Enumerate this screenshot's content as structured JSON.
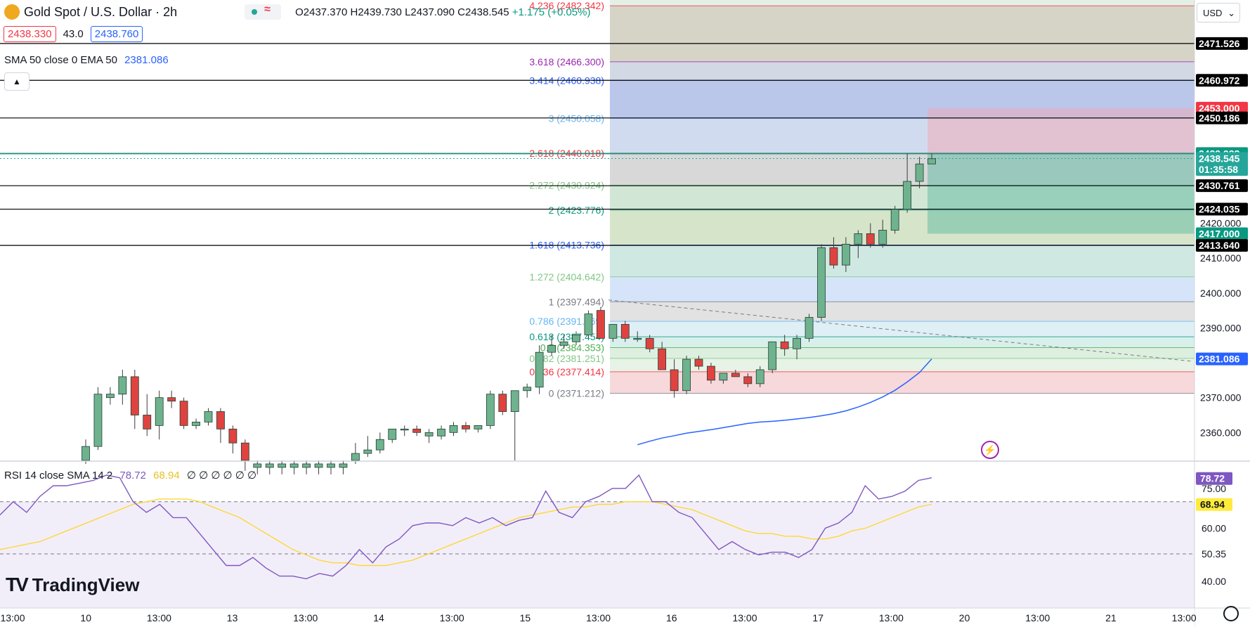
{
  "header": {
    "symbol": "Gold Spot / U.S. Dollar · 2h",
    "open": "O2437.370",
    "high": "H2439.730",
    "low": "L2437.090",
    "close": "C2438.545",
    "change": "+1.175 (+0.05%)",
    "bid": "2438.330",
    "spread": "43.0",
    "ask": "2438.760",
    "currency": "USD"
  },
  "indicators": {
    "sma": "SMA 50 close 0 EMA 50",
    "sma_value": "2381.086",
    "rsi": "RSI 14 close SMA 14 2",
    "rsi_value": "78.72",
    "rsi_sma_value": "68.94",
    "rsi_extra": "∅ ∅ ∅ ∅ ∅ ∅"
  },
  "brand": "TradingView",
  "colors": {
    "up": "#26a69a",
    "down": "#ef5350",
    "candle_up_fill": "#6fb38e",
    "candle_down_fill": "#e0433f",
    "sma": "#2962ff",
    "rsi": "#7e57c2",
    "rsi_sma": "#fdd835"
  },
  "chart_data": {
    "type": "candlestick",
    "price_ylim": [
      2352,
      2484
    ],
    "price_ticks": [
      "2360.000",
      "2370.000",
      "2390.000",
      "2400.000",
      "2410.000",
      "2420.000"
    ],
    "x_ticks": [
      "13:00",
      "10",
      "13:00",
      "13",
      "13:00",
      "14",
      "13:00",
      "15",
      "13:00",
      "16",
      "13:00",
      "17",
      "13:00",
      "20",
      "13:00",
      "21",
      "13:00"
    ],
    "candles": [
      {
        "o": 2352,
        "h": 2358,
        "l": 2351,
        "c": 2356
      },
      {
        "o": 2356,
        "h": 2373,
        "l": 2355,
        "c": 2371
      },
      {
        "o": 2370,
        "h": 2373,
        "l": 2368,
        "c": 2371
      },
      {
        "o": 2371,
        "h": 2378,
        "l": 2368,
        "c": 2376
      },
      {
        "o": 2376,
        "h": 2378,
        "l": 2361,
        "c": 2365
      },
      {
        "o": 2365,
        "h": 2371,
        "l": 2359,
        "c": 2361
      },
      {
        "o": 2362,
        "h": 2372,
        "l": 2358,
        "c": 2370
      },
      {
        "o": 2370,
        "h": 2372,
        "l": 2367,
        "c": 2369
      },
      {
        "o": 2369,
        "h": 2370,
        "l": 2361,
        "c": 2362
      },
      {
        "o": 2362,
        "h": 2364,
        "l": 2361,
        "c": 2363
      },
      {
        "o": 2363,
        "h": 2367,
        "l": 2362,
        "c": 2366
      },
      {
        "o": 2366,
        "h": 2367,
        "l": 2357,
        "c": 2361
      },
      {
        "o": 2361,
        "h": 2362,
        "l": 2354,
        "c": 2357
      },
      {
        "o": 2357,
        "h": 2358,
        "l": 2349,
        "c": 2352
      },
      {
        "o": 2350,
        "h": 2352,
        "l": 2348,
        "c": 2351
      },
      {
        "o": 2350,
        "h": 2352,
        "l": 2348,
        "c": 2351
      },
      {
        "o": 2350,
        "h": 2352,
        "l": 2348,
        "c": 2351
      },
      {
        "o": 2350,
        "h": 2352,
        "l": 2348,
        "c": 2351
      },
      {
        "o": 2350,
        "h": 2352,
        "l": 2348,
        "c": 2351
      },
      {
        "o": 2350,
        "h": 2352,
        "l": 2348,
        "c": 2351
      },
      {
        "o": 2350,
        "h": 2352,
        "l": 2348,
        "c": 2351
      },
      {
        "o": 2350,
        "h": 2352,
        "l": 2348,
        "c": 2351
      },
      {
        "o": 2352,
        "h": 2357,
        "l": 2351,
        "c": 2354
      },
      {
        "o": 2354,
        "h": 2359,
        "l": 2353,
        "c": 2355
      },
      {
        "o": 2355,
        "h": 2360,
        "l": 2354,
        "c": 2358
      },
      {
        "o": 2358,
        "h": 2361,
        "l": 2357,
        "c": 2361
      },
      {
        "o": 2361,
        "h": 2362,
        "l": 2359,
        "c": 2361
      },
      {
        "o": 2361,
        "h": 2362,
        "l": 2359,
        "c": 2360
      },
      {
        "o": 2359,
        "h": 2361,
        "l": 2357,
        "c": 2360
      },
      {
        "o": 2359,
        "h": 2362,
        "l": 2358,
        "c": 2361
      },
      {
        "o": 2360,
        "h": 2363,
        "l": 2359,
        "c": 2362
      },
      {
        "o": 2362,
        "h": 2363,
        "l": 2360,
        "c": 2361
      },
      {
        "o": 2361,
        "h": 2362,
        "l": 2360,
        "c": 2362
      },
      {
        "o": 2362,
        "h": 2372,
        "l": 2361,
        "c": 2371
      },
      {
        "o": 2371,
        "h": 2372,
        "l": 2365,
        "c": 2366
      },
      {
        "o": 2366,
        "h": 2372,
        "l": 2352,
        "c": 2372
      },
      {
        "o": 2372,
        "h": 2374,
        "l": 2370,
        "c": 2373
      },
      {
        "o": 2373,
        "h": 2385,
        "l": 2371,
        "c": 2383
      },
      {
        "o": 2383,
        "h": 2388,
        "l": 2382,
        "c": 2385
      },
      {
        "o": 2385,
        "h": 2388,
        "l": 2384,
        "c": 2386
      },
      {
        "o": 2386,
        "h": 2389,
        "l": 2385,
        "c": 2388
      },
      {
        "o": 2388,
        "h": 2395,
        "l": 2387,
        "c": 2394
      },
      {
        "o": 2395,
        "h": 2396,
        "l": 2387,
        "c": 2387
      },
      {
        "o": 2387,
        "h": 2391,
        "l": 2386,
        "c": 2391
      },
      {
        "o": 2391,
        "h": 2392,
        "l": 2386,
        "c": 2387
      },
      {
        "o": 2387,
        "h": 2389,
        "l": 2386,
        "c": 2387
      },
      {
        "o": 2387,
        "h": 2388,
        "l": 2383,
        "c": 2384
      },
      {
        "o": 2384,
        "h": 2386,
        "l": 2378,
        "c": 2378
      },
      {
        "o": 2378,
        "h": 2381,
        "l": 2370,
        "c": 2372
      },
      {
        "o": 2372,
        "h": 2382,
        "l": 2371,
        "c": 2381
      },
      {
        "o": 2381,
        "h": 2382,
        "l": 2378,
        "c": 2379
      },
      {
        "o": 2379,
        "h": 2380,
        "l": 2374,
        "c": 2375
      },
      {
        "o": 2375,
        "h": 2377,
        "l": 2374,
        "c": 2377
      },
      {
        "o": 2377,
        "h": 2378,
        "l": 2376,
        "c": 2376
      },
      {
        "o": 2376,
        "h": 2377,
        "l": 2373,
        "c": 2374
      },
      {
        "o": 2374,
        "h": 2379,
        "l": 2373,
        "c": 2378
      },
      {
        "o": 2378,
        "h": 2386,
        "l": 2377,
        "c": 2386
      },
      {
        "o": 2386,
        "h": 2388,
        "l": 2382,
        "c": 2384
      },
      {
        "o": 2384,
        "h": 2388,
        "l": 2381,
        "c": 2387
      },
      {
        "o": 2387,
        "h": 2394,
        "l": 2386,
        "c": 2393
      },
      {
        "o": 2393,
        "h": 2414,
        "l": 2392,
        "c": 2413
      },
      {
        "o": 2413,
        "h": 2416,
        "l": 2407,
        "c": 2408
      },
      {
        "o": 2408,
        "h": 2416,
        "l": 2406,
        "c": 2414
      },
      {
        "o": 2414,
        "h": 2418,
        "l": 2410,
        "c": 2417
      },
      {
        "o": 2417,
        "h": 2420,
        "l": 2413,
        "c": 2414
      },
      {
        "o": 2414,
        "h": 2421,
        "l": 2413,
        "c": 2418
      },
      {
        "o": 2418,
        "h": 2425,
        "l": 2417,
        "c": 2424
      },
      {
        "o": 2424,
        "h": 2440,
        "l": 2423,
        "c": 2432
      },
      {
        "o": 2432,
        "h": 2439,
        "l": 2430,
        "c": 2437
      },
      {
        "o": 2437,
        "h": 2440,
        "l": 2437,
        "c": 2438.5
      }
    ],
    "sma50": [
      2356.5,
      2357.5,
      2358.4,
      2359.1,
      2359.8,
      2360.3,
      2360.8,
      2361.4,
      2362.0,
      2362.6,
      2363.0,
      2363.2,
      2363.5,
      2363.9,
      2364.3,
      2364.8,
      2365.4,
      2366.2,
      2367.3,
      2368.6,
      2370.2,
      2372.1,
      2374.5,
      2377.2,
      2381.1
    ],
    "sma50_start_candle": 45,
    "fib_levels": [
      {
        "ratio": "0",
        "price": 2371.212,
        "label": "0 (2371.212)",
        "color": "#787b86",
        "fill": "#f7d6d9"
      },
      {
        "ratio": "0.236",
        "price": 2377.414,
        "label": "0.236 (2377.414)",
        "color": "#f23645",
        "fill": "#e6f2e6"
      },
      {
        "ratio": "0.382",
        "price": 2381.251,
        "label": "0.382 (2381.251)",
        "color": "#81c784",
        "fill": "#dbeedd"
      },
      {
        "ratio": "0.5",
        "price": 2384.353,
        "label": "0.5 (2384.353)",
        "color": "#4caf50",
        "fill": "#d7eeea"
      },
      {
        "ratio": "0.618",
        "price": 2387.454,
        "label": "0.618 (2387.454)",
        "color": "#089981",
        "fill": "#ddeef6"
      },
      {
        "ratio": "0.786",
        "price": 2391.869,
        "label": "0.786 (2391.869)",
        "color": "#64b5f6",
        "fill": "#e0e0e0"
      },
      {
        "ratio": "1",
        "price": 2397.494,
        "label": "1 (2397.494)",
        "color": "#787b86",
        "fill": "#d4e3fa"
      },
      {
        "ratio": "1.272",
        "price": 2404.642,
        "label": "1.272 (2404.642)",
        "color": "#81c784",
        "fill": "#cde7e0"
      },
      {
        "ratio": "1.618",
        "price": 2413.736,
        "label": "1.618 (2413.736)",
        "color": "#2962ff",
        "fill": "#d4e3c7"
      },
      {
        "ratio": "2",
        "price": 2423.776,
        "label": "2 (2423.776)",
        "color": "#089981",
        "fill": "#cfe5d3"
      },
      {
        "ratio": "2.272",
        "price": 2430.924,
        "label": "2.272 (2430.924)",
        "color": "#81c784",
        "fill": "#d6d6d6"
      },
      {
        "ratio": "2.618",
        "price": 2440.018,
        "label": "2.618 (2440.018)",
        "color": "#f23645",
        "fill": "#cfd9ee"
      },
      {
        "ratio": "3",
        "price": 2450.058,
        "label": "3 (2450.058)",
        "color": "#64b5f6",
        "fill": "#b7c3ea"
      },
      {
        "ratio": "3.414",
        "price": 2460.938,
        "label": "3.414 (2460.938)",
        "color": "#2962ff",
        "fill": "#d0d7e4"
      },
      {
        "ratio": "3.618",
        "price": 2466.3,
        "label": "3.618 (2466.300)",
        "color": "#9c27b0",
        "fill": "#d4d2c4"
      },
      {
        "ratio": "4.236",
        "price": 2482.342,
        "label": "4.236 (2482.342)",
        "color": "#f23645",
        "fill": "#e2efe5"
      }
    ],
    "black_lines": [
      2471.526,
      2460.972,
      2450.186,
      2440.0,
      2430.761,
      2424.035,
      2413.64
    ],
    "teal_line": 2439.933,
    "price_labels": [
      {
        "text": "2471.526",
        "price": 2471.526,
        "bg": "#000000"
      },
      {
        "text": "2460.972",
        "price": 2460.972,
        "bg": "#000000"
      },
      {
        "text": "2453.000",
        "price": 2453.0,
        "bg": "#f23645"
      },
      {
        "text": "2450.186",
        "price": 2450.186,
        "bg": "#000000"
      },
      {
        "text": "2440.000",
        "price": 2440.0,
        "bg": "#787b86"
      },
      {
        "text": "2439.933",
        "price": 2439.933,
        "bg": "#089981"
      },
      {
        "text": "2438.545",
        "price": 2438.545,
        "bg": "#26a69a"
      },
      {
        "text": "01:35:58",
        "price": 2435.4,
        "bg": "#26a69a"
      },
      {
        "text": "2430.761",
        "price": 2430.761,
        "bg": "#000000"
      },
      {
        "text": "2424.035",
        "price": 2424.035,
        "bg": "#000000"
      },
      {
        "text": "2417.000",
        "price": 2417.0,
        "bg": "#089981"
      },
      {
        "text": "2413.640",
        "price": 2413.64,
        "bg": "#000000"
      },
      {
        "text": "2381.086",
        "price": 2381.086,
        "bg": "#2962ff"
      }
    ],
    "position": {
      "entry": 2440.0,
      "stop": 2453.0,
      "target": 2417.0
    },
    "trendline": [
      2398.0,
      2380.4
    ],
    "rsi": {
      "ylim": [
        30,
        85
      ],
      "levels": [
        70,
        50.35,
        30
      ],
      "ticks": [
        "75.00",
        "60.00",
        "50.35",
        "40.00"
      ],
      "rsi_value": 78.72,
      "sma_value": 68.94,
      "rsi_values": [
        65,
        70,
        66,
        72,
        76,
        76,
        77,
        78,
        80,
        79,
        70,
        66,
        69,
        64,
        64,
        58,
        52,
        46,
        46,
        49,
        45,
        42,
        42,
        41,
        43,
        42,
        46,
        52,
        47,
        53,
        56,
        61,
        62,
        62,
        61,
        64,
        62,
        64,
        61,
        63,
        64,
        74,
        66,
        64,
        70,
        72,
        75,
        75,
        80,
        70,
        70,
        66,
        64,
        58,
        52,
        55,
        52,
        50,
        51,
        51,
        49,
        52,
        60,
        62,
        66,
        76,
        71,
        72,
        74,
        78,
        79
      ],
      "sma_values": [
        52,
        53,
        54,
        55,
        57,
        59,
        61,
        63,
        65,
        67,
        69,
        70,
        71,
        71,
        71,
        70,
        68,
        66,
        64,
        61,
        58,
        55,
        52,
        50,
        48,
        47,
        47,
        46,
        46,
        46,
        47,
        48,
        50,
        52,
        54,
        56,
        58,
        60,
        62,
        64,
        65,
        66,
        67,
        68,
        68,
        69,
        69,
        70,
        70,
        70,
        69,
        68,
        67,
        65,
        63,
        61,
        59,
        58,
        58,
        57,
        57,
        56,
        56,
        57,
        59,
        60,
        62,
        64,
        66,
        68,
        69
      ]
    }
  }
}
